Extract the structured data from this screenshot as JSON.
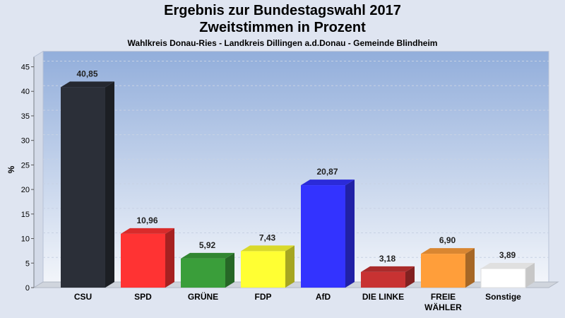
{
  "chart_data": {
    "type": "bar",
    "title": "Ergebnis zur Bundestagswahl 2017",
    "subtitle": "Zweitstimmen in Prozent",
    "caption": "Wahlkreis Donau-Ries - Landkreis Dillingen a.d.Donau - Gemeinde Blindheim",
    "ylabel": "%",
    "xlabel": "",
    "ylim": [
      0,
      47
    ],
    "yticks": [
      0,
      5,
      10,
      15,
      20,
      25,
      30,
      35,
      40,
      45
    ],
    "grid": true,
    "categories": [
      "CSU",
      "SPD",
      "GRÜNE",
      "FDP",
      "AfD",
      "DIE LINKE",
      "FREIE WÄHLER",
      "Sonstige"
    ],
    "category_lines": [
      [
        "CSU"
      ],
      [
        "SPD"
      ],
      [
        "GRÜNE"
      ],
      [
        "FDP"
      ],
      [
        "AfD"
      ],
      [
        "DIE LINKE"
      ],
      [
        "FREIE",
        "WÄHLER"
      ],
      [
        "Sonstige"
      ]
    ],
    "values": [
      40.85,
      10.96,
      5.92,
      7.43,
      20.87,
      3.18,
      6.9,
      3.89
    ],
    "value_labels": [
      "40,85",
      "10,96",
      "5,92",
      "7,43",
      "20,87",
      "3,18",
      "6,90",
      "3,89"
    ],
    "colors": [
      "#2b2f38",
      "#ff3333",
      "#3a9e3a",
      "#ffff33",
      "#3333ff",
      "#c83232",
      "#ff9e3a",
      "#ffffff"
    ]
  }
}
